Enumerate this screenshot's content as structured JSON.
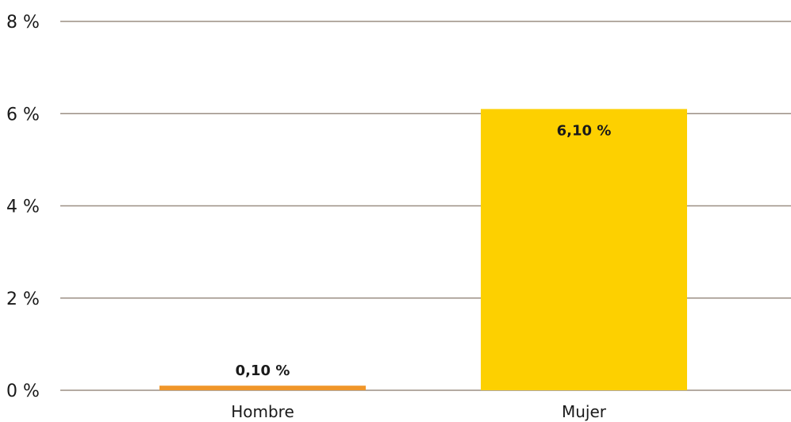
{
  "chart_data": {
    "type": "bar",
    "categories": [
      "Hombre",
      "Mujer"
    ],
    "values": [
      0.1,
      6.1
    ],
    "value_labels": [
      "0,10 %",
      "6,10 %"
    ],
    "ylim": [
      0,
      8
    ],
    "yticks": [
      0,
      2,
      4,
      6,
      8
    ],
    "ytick_labels": [
      "0 %",
      "2 %",
      "4 %",
      "6 %",
      "8 %"
    ],
    "grid": true,
    "colors": {
      "bars": [
        "#F0962A",
        "#FDD000"
      ],
      "grid": "#9B8F84",
      "text": "#1A1A1A"
    }
  }
}
